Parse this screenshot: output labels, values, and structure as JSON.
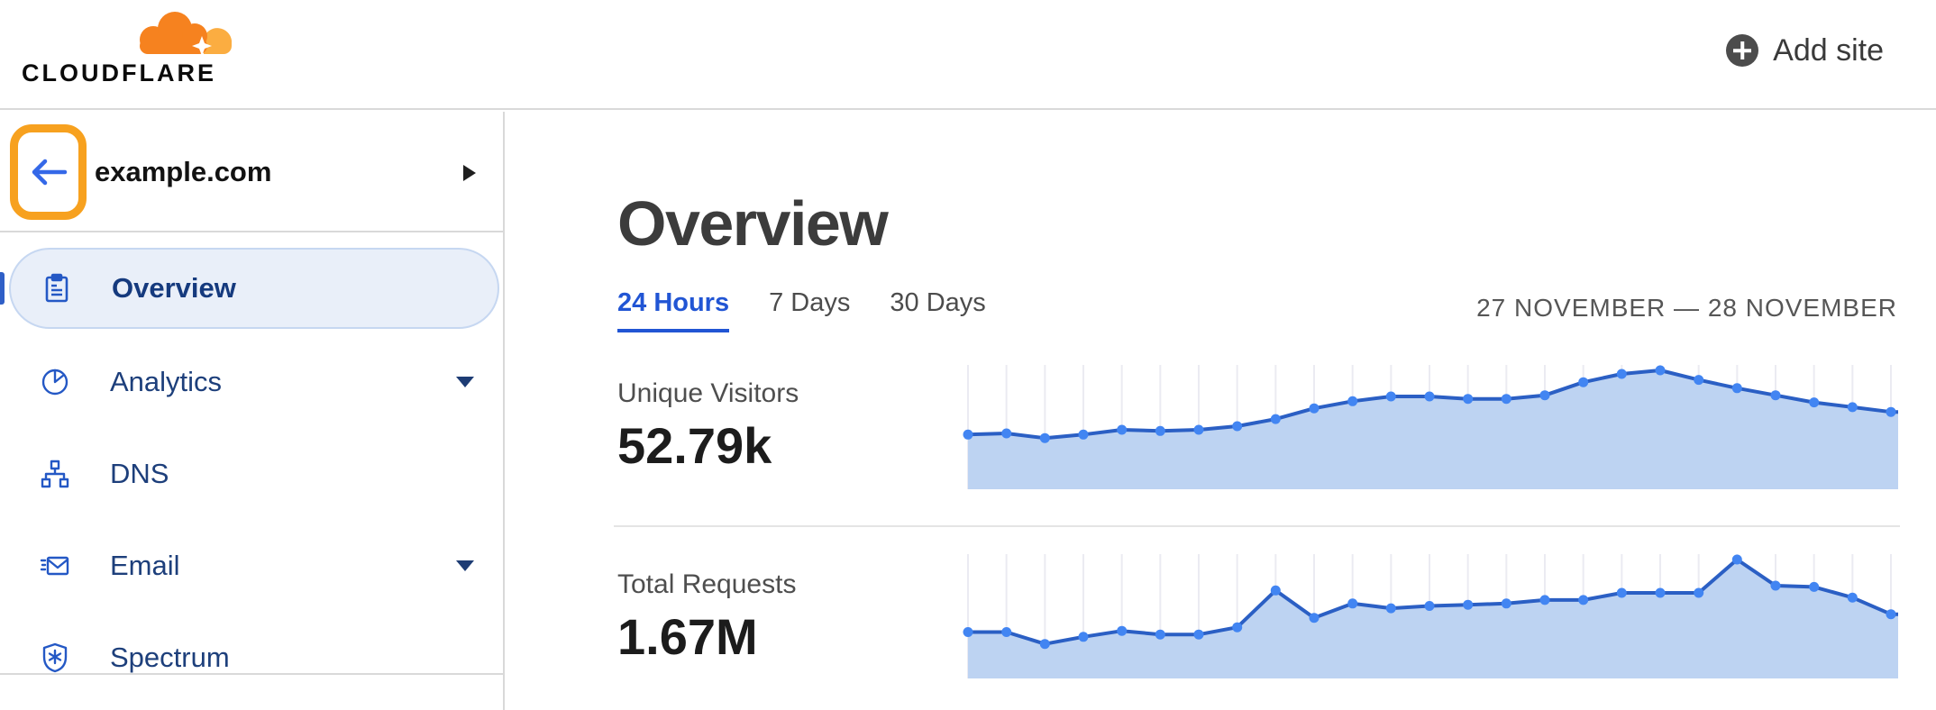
{
  "header": {
    "logo_text": "CLOUDFLARE",
    "add_site_label": "Add site"
  },
  "sidebar": {
    "site_name": "example.com",
    "items": [
      {
        "label": "Overview",
        "icon": "clipboard-icon",
        "selected": true,
        "has_caret": false
      },
      {
        "label": "Analytics",
        "icon": "pie-chart-icon",
        "selected": false,
        "has_caret": true
      },
      {
        "label": "DNS",
        "icon": "network-icon",
        "selected": false,
        "has_caret": false
      },
      {
        "label": "Email",
        "icon": "email-icon",
        "selected": false,
        "has_caret": true
      },
      {
        "label": "Spectrum",
        "icon": "shield-icon",
        "selected": false,
        "has_caret": false
      }
    ]
  },
  "main": {
    "title": "Overview",
    "tabs": [
      {
        "label": "24 Hours",
        "active": true
      },
      {
        "label": "7 Days",
        "active": false
      },
      {
        "label": "30 Days",
        "active": false
      }
    ],
    "date_range": "27 NOVEMBER — 28 NOVEMBER"
  },
  "colors": {
    "brand_orange": "#f6821f",
    "brand_orange_light": "#fbad41",
    "highlight_orange": "#f7a11f",
    "nav_icon_blue": "#2458c5",
    "nav_text_navy": "#1d3f7b",
    "selected_pill_bg": "#e9eff9",
    "selected_pill_border": "#c6d7f1",
    "link_blue": "#2155d4",
    "chart_line": "#2b5fc4",
    "chart_marker": "#4285f2",
    "chart_fill": "#bdd3f2",
    "chart_gridline": "#ebebf2",
    "divider_gray": "#d9d9d9"
  },
  "chart_data": [
    {
      "type": "area",
      "title": "Unique Visitors",
      "value_label": "52.79k",
      "x_description": "25 hourly samples, 27 November — 28 November (no axis labels shown)",
      "value_scale": "relative 0-100, peak = 100",
      "grid": "vertical gridline at every sample",
      "legend": "none",
      "values": [
        46,
        47,
        43,
        46,
        50,
        49,
        50,
        53,
        59,
        68,
        74,
        78,
        78,
        76,
        76,
        79,
        90,
        97,
        100,
        92,
        85,
        79,
        73,
        69,
        65
      ]
    },
    {
      "type": "area",
      "title": "Total Requests",
      "value_label": "1.67M",
      "x_description": "25 hourly samples, 27 November — 28 November (no axis labels shown)",
      "value_scale": "relative 0-100, peak = 100",
      "grid": "vertical gridline at every sample",
      "legend": "none",
      "values": [
        39,
        39,
        29,
        35,
        40,
        37,
        37,
        43,
        74,
        51,
        63,
        59,
        61,
        62,
        63,
        66,
        66,
        72,
        72,
        72,
        100,
        78,
        77,
        68,
        54
      ]
    }
  ]
}
